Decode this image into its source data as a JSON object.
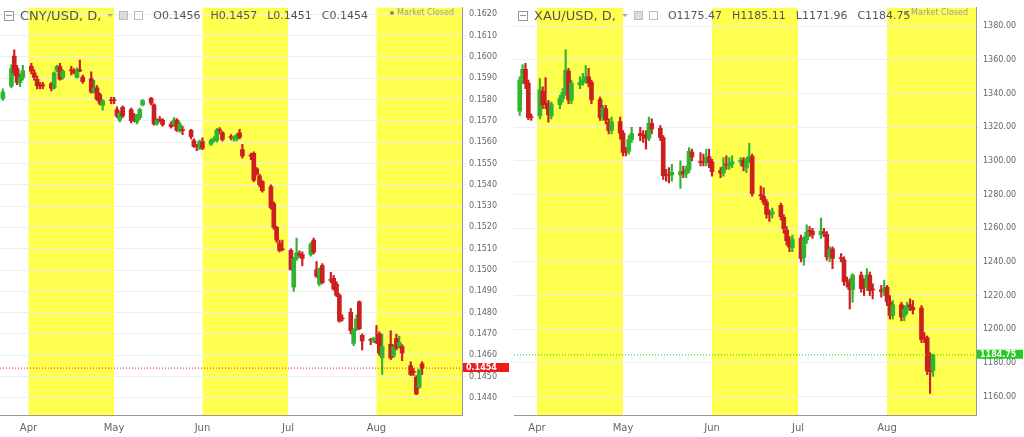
{
  "chart_data": [
    {
      "type": "candlestick",
      "title": "CNY/USD, D,",
      "annotations": [
        "O0.1456",
        "H0.1457",
        "L0.1451",
        "C0.1454",
        "Market Closed"
      ],
      "colors": [
        "#2fb52f",
        "#2fb52f",
        "#cc1f1f",
        "#cc1f1f",
        "#2fb52f",
        "#2fb52f",
        "#cc1f1f",
        "#cc1f1f",
        "#cc1f1f",
        "#cc1f1f",
        "#cc1f1f",
        "#cc1f1f",
        "#2fb52f",
        "#2fb52f",
        "#cc1f1f",
        "#2fb52f",
        "#cc1f1f",
        "#cc1f1f",
        "#2fb52f",
        "#cc1f1f",
        "#cc1f1f",
        "#cc1f1f",
        "#2fb52f",
        "#cc1f1f",
        "#cc1f1f",
        "#2fb52f",
        "#cc1f1f",
        "#cc1f1f",
        "#cc1f1f",
        "#2fb52f",
        "#cc1f1f",
        "#cc1f1f",
        "#cc1f1f",
        "#2fb52f",
        "#2fb52f",
        "#2fb52f",
        "#cc1f1f",
        "#cc1f1f",
        "#2fb52f",
        "#cc1f1f",
        "#cc1f1f",
        "#cc1f1f",
        "#2fb52f",
        "#cc1f1f",
        "#2fb52f",
        "#cc1f1f",
        "#cc1f1f",
        "#cc1f1f",
        "#cc1f1f",
        "#2fb52f",
        "#cc1f1f",
        "#2fb52f",
        "#2fb52f",
        "#2fb52f",
        "#cc1f1f",
        "#cc1f1f",
        "#cc1f1f",
        "#2fb52f",
        "#2fb52f",
        "#cc1f1f",
        "#cc1f1f",
        "#cc1f1f",
        "#cc1f1f",
        "#cc1f1f",
        "#cc1f1f",
        "#cc1f1f",
        "#cc1f1f",
        "#cc1f1f",
        "#cc1f1f",
        "#cc1f1f",
        "#cc1f1f",
        "#cc1f1f",
        "#2fb52f",
        "#2fb52f",
        "#cc1f1f",
        "#cc1f1f",
        "#2fb52f",
        "#cc1f1f",
        "#cc1f1f",
        "#2fb52f",
        "#cc1f1f",
        "#cc1f1f",
        "#cc1f1f",
        "#cc1f1f",
        "#cc1f1f",
        "#cc1f1f",
        "#cc1f1f",
        "#2fb52f",
        "#2fb52f",
        "#cc1f1f",
        "#cc1f1f",
        "#cc1f1f",
        "#2fb52f",
        "#cc1f1f",
        "#cc1f1f",
        "#2fb52f",
        "#cc1f1f",
        "#2fb52f",
        "#cc1f1f",
        "#2fb52f",
        "#cc1f1f",
        "#cc1f1f",
        "#cc1f1f",
        "#cc1f1f",
        "#2fb52f",
        "#cc1f1f"
      ],
      "x": [
        "--03-23",
        "--03-26",
        "--03-27",
        "--03-28",
        "--03-29",
        "--03-30",
        "--04-02",
        "--04-03",
        "--04-04",
        "--04-05",
        "--04-06",
        "--04-09",
        "--04-10",
        "--04-11",
        "--04-12",
        "--04-13",
        "--04-16",
        "--04-17",
        "--04-18",
        "--04-19",
        "--04-20",
        "--04-23",
        "--04-24",
        "--04-25",
        "--04-26",
        "--04-27",
        "--04-30",
        "--05-01",
        "--05-02",
        "--05-03",
        "--05-04",
        "--05-07",
        "--05-08",
        "--05-09",
        "--05-10",
        "--05-11",
        "--05-14",
        "--05-15",
        "--05-16",
        "--05-17",
        "--05-18",
        "--05-21",
        "--05-22",
        "--05-23",
        "--05-24",
        "--05-25",
        "--05-28",
        "--05-29",
        "--05-30",
        "--05-31",
        "--06-01",
        "--06-04",
        "--06-05",
        "--06-06",
        "--06-07",
        "--06-08",
        "--06-11",
        "--06-12",
        "--06-13",
        "--06-14",
        "--06-15",
        "--06-18",
        "--06-19",
        "--06-20",
        "--06-21",
        "--06-22",
        "--06-25",
        "--06-26",
        "--06-27",
        "--06-28",
        "--06-29",
        "--07-02",
        "--07-03",
        "--07-04",
        "--07-05",
        "--07-06",
        "--07-09",
        "--07-10",
        "--07-11",
        "--07-12",
        "--07-13",
        "--07-16",
        "--07-17",
        "--07-18",
        "--07-19",
        "--07-20",
        "--07-23",
        "--07-24",
        "--07-25",
        "--07-26",
        "--07-27",
        "--07-30",
        "--07-31",
        "--08-01",
        "--08-02",
        "--08-03",
        "--08-06",
        "--08-07",
        "--08-08",
        "--08-09",
        "--08-10",
        "--08-13",
        "--08-14",
        "--08-15",
        "--08-16",
        "--08-17"
      ],
      "ohlc": [
        [
          0.15805,
          0.1585,
          0.15795,
          0.15835
        ],
        [
          0.15862,
          0.15963,
          0.15855,
          0.15945
        ],
        [
          0.16003,
          0.16033,
          0.1591,
          0.15925
        ],
        [
          0.15945,
          0.1596,
          0.1587,
          0.1588
        ],
        [
          0.1588,
          0.1592,
          0.1586,
          0.15905
        ],
        [
          0.15903,
          0.1596,
          0.1589,
          0.15935
        ],
        [
          0.15955,
          0.1597,
          0.1592,
          0.15933
        ],
        [
          0.15925,
          0.1594,
          0.1589,
          0.15903
        ],
        [
          0.15895,
          0.1591,
          0.1585,
          0.15865
        ],
        [
          0.15866,
          0.1588,
          0.1585,
          0.15864
        ],
        [
          0.15866,
          0.1588,
          0.1585,
          0.15864
        ],
        [
          0.15873,
          0.1588,
          0.1584,
          0.15853
        ],
        [
          0.15853,
          0.1593,
          0.1585,
          0.15925
        ],
        [
          0.15935,
          0.1596,
          0.1593,
          0.15955
        ],
        [
          0.15955,
          0.1597,
          0.1589,
          0.15895
        ],
        [
          0.15903,
          0.1594,
          0.15895,
          0.15933
        ],
        [
          0.15936,
          0.15955,
          0.15915,
          0.15934
        ],
        [
          0.15935,
          0.15945,
          0.1592,
          0.15925
        ],
        [
          0.15903,
          0.15948,
          0.159,
          0.15933
        ],
        [
          0.15936,
          0.15985,
          0.1593,
          0.15934
        ],
        [
          0.15905,
          0.15915,
          0.15875,
          0.15883
        ],
        [
          0.15898,
          0.1593,
          0.1583,
          0.15835
        ],
        [
          0.15835,
          0.1589,
          0.1583,
          0.15855
        ],
        [
          0.15855,
          0.15865,
          0.15795,
          0.15802
        ],
        [
          0.15823,
          0.1583,
          0.15775,
          0.15783
        ],
        [
          0.15772,
          0.158,
          0.1575,
          0.15795
        ],
        [
          0.15796,
          0.1581,
          0.1578,
          0.15794
        ],
        [
          0.15796,
          0.1581,
          0.1578,
          0.15794
        ],
        [
          0.15753,
          0.15765,
          0.15715,
          0.15723
        ],
        [
          0.15703,
          0.15745,
          0.15695,
          0.15735
        ],
        [
          0.15763,
          0.1577,
          0.15715,
          0.15723
        ],
        [
          0.15753,
          0.1576,
          0.1569,
          0.157
        ],
        [
          0.15727,
          0.15735,
          0.15695,
          0.15703
        ],
        [
          0.15693,
          0.1573,
          0.15685,
          0.15723
        ],
        [
          0.15715,
          0.1576,
          0.15705,
          0.15753
        ],
        [
          0.15775,
          0.158,
          0.1577,
          0.15795
        ],
        [
          0.15805,
          0.1581,
          0.15775,
          0.15783
        ],
        [
          0.15775,
          0.1578,
          0.1568,
          0.15685
        ],
        [
          0.15685,
          0.1571,
          0.1568,
          0.15703
        ],
        [
          0.15704,
          0.1572,
          0.15695,
          0.15702
        ],
        [
          0.15703,
          0.1571,
          0.15675,
          0.15682
        ],
        [
          0.15685,
          0.15695,
          0.15665,
          0.15673
        ],
        [
          0.15682,
          0.15715,
          0.15675,
          0.15703
        ],
        [
          0.15703,
          0.1571,
          0.1565,
          0.15655
        ],
        [
          0.15655,
          0.15695,
          0.15645,
          0.15685
        ],
        [
          0.15656,
          0.15675,
          0.15635,
          0.15654
        ],
        [
          0.15655,
          0.1566,
          0.15615,
          0.15625
        ],
        [
          0.15607,
          0.15615,
          0.15575,
          0.1558
        ],
        [
          0.15581,
          0.1559,
          0.1556,
          0.15579
        ],
        [
          0.15573,
          0.1561,
          0.15565,
          0.15603
        ],
        [
          0.15602,
          0.1562,
          0.15565,
          0.15572
        ],
        [
          0.1559,
          0.15615,
          0.15585,
          0.15607
        ],
        [
          0.15607,
          0.15625,
          0.156,
          0.15617
        ],
        [
          0.15607,
          0.15665,
          0.156,
          0.15655
        ],
        [
          0.15656,
          0.15668,
          0.15638,
          0.15654
        ],
        [
          0.15643,
          0.1565,
          0.15605,
          0.15613
        ],
        [
          0.15623,
          0.15635,
          0.1561,
          0.15621
        ],
        [
          0.15614,
          0.1563,
          0.15605,
          0.15625
        ],
        [
          0.15614,
          0.1564,
          0.15605,
          0.15632
        ],
        [
          0.15643,
          0.1566,
          0.15615,
          0.15622
        ],
        [
          0.15565,
          0.1559,
          0.15525,
          0.15535
        ],
        [
          0.15536,
          0.15548,
          0.15518,
          0.15534
        ],
        [
          0.15547,
          0.15555,
          0.15415,
          0.15422
        ],
        [
          0.15475,
          0.1548,
          0.15445,
          0.15452
        ],
        [
          0.15442,
          0.1545,
          0.1539,
          0.154
        ],
        [
          0.15415,
          0.1542,
          0.15365,
          0.15372
        ],
        [
          0.15392,
          0.154,
          0.15285,
          0.15294
        ],
        [
          0.15312,
          0.1532,
          0.1519,
          0.152
        ],
        [
          0.152,
          0.15205,
          0.1513,
          0.1514
        ],
        [
          0.15126,
          0.1514,
          0.15085,
          0.15092
        ],
        [
          0.15097,
          0.1514,
          0.1509,
          0.15095
        ],
        [
          0.15092,
          0.151,
          0.15,
          0.15002
        ],
        [
          0.1492,
          0.1506,
          0.149,
          0.15054
        ],
        [
          0.15054,
          0.1515,
          0.15045,
          0.15081
        ],
        [
          0.15073,
          0.1509,
          0.1506,
          0.15071
        ],
        [
          0.15072,
          0.15085,
          0.1502,
          0.15054
        ],
        [
          0.15072,
          0.1513,
          0.15065,
          0.15122
        ],
        [
          0.15141,
          0.1515,
          0.15075,
          0.15084
        ],
        [
          0.15002,
          0.1504,
          0.14965,
          0.14971
        ],
        [
          0.14934,
          0.1501,
          0.14925,
          0.15002
        ],
        [
          0.15021,
          0.1503,
          0.14935,
          0.14941
        ],
        [
          0.14953,
          0.1499,
          0.1494,
          0.14951
        ],
        [
          0.14961,
          0.14975,
          0.14905,
          0.14911
        ],
        [
          0.14934,
          0.14945,
          0.14875,
          0.14881
        ],
        [
          0.14881,
          0.1489,
          0.14755,
          0.14761
        ],
        [
          0.14773,
          0.1479,
          0.1476,
          0.14771
        ],
        [
          0.14802,
          0.1482,
          0.147,
          0.14716
        ],
        [
          0.14656,
          0.14725,
          0.14645,
          0.14721
        ],
        [
          0.14722,
          0.1479,
          0.14715,
          0.1477
        ],
        [
          0.14851,
          0.14855,
          0.1472,
          0.14724
        ],
        [
          0.14694,
          0.147,
          0.14625,
          0.14667
        ],
        [
          0.14672,
          0.1468,
          0.1465,
          0.1467
        ],
        [
          0.14667,
          0.14685,
          0.1466,
          0.14679
        ],
        [
          0.14662,
          0.1474,
          0.14655,
          0.1466
        ],
        [
          0.14701,
          0.1471,
          0.146,
          0.14611
        ],
        [
          0.14588,
          0.147,
          0.1451,
          0.14641
        ],
        [
          0.14652,
          0.14715,
          0.1458,
          0.14588
        ],
        [
          0.14596,
          0.1465,
          0.1459,
          0.14641
        ],
        [
          0.14679,
          0.147,
          0.14625,
          0.14634
        ],
        [
          0.14641,
          0.1469,
          0.14635,
          0.14661
        ],
        [
          0.14641,
          0.1465,
          0.14575,
          0.14611
        ],
        [
          0.14551,
          0.1457,
          0.14505,
          0.1451
        ],
        [
          0.14522,
          0.14538,
          0.14505,
          0.1452
        ],
        [
          0.14498,
          0.14505,
          0.14415,
          0.14419
        ],
        [
          0.14449,
          0.14535,
          0.14445,
          0.14531
        ],
        [
          0.1456,
          0.1457,
          0.1451,
          0.1454
        ]
      ],
      "xlim": [
        "--03-22",
        "--08-31"
      ],
      "xticks": [
        {
          "value": "--04-01",
          "label": "Apr"
        },
        {
          "value": "--05-01",
          "label": "May"
        },
        {
          "value": "--06-01",
          "label": "Jun"
        },
        {
          "value": "--07-01",
          "label": "Jul"
        },
        {
          "value": "--08-01",
          "label": "Aug"
        }
      ],
      "ylim": [
        0.1432,
        0.1623
      ],
      "yticks": [
        {
          "value": 0.144,
          "label": "0.1440"
        },
        {
          "value": 0.145,
          "label": "0.1450"
        },
        {
          "value": 0.146,
          "label": "0.1460"
        },
        {
          "value": 0.147,
          "label": "0.1470"
        },
        {
          "value": 0.148,
          "label": "0.1480"
        },
        {
          "value": 0.149,
          "label": "0.1490"
        },
        {
          "value": 0.15,
          "label": "0.1500"
        },
        {
          "value": 0.151,
          "label": "0.1510"
        },
        {
          "value": 0.152,
          "label": "0.1520"
        },
        {
          "value": 0.153,
          "label": "0.1530"
        },
        {
          "value": 0.154,
          "label": "0.1540"
        },
        {
          "value": 0.155,
          "label": "0.1550"
        },
        {
          "value": 0.156,
          "label": "0.1560"
        },
        {
          "value": 0.157,
          "label": "0.1570"
        },
        {
          "value": 0.158,
          "label": "0.1580"
        },
        {
          "value": 0.159,
          "label": "0.1590"
        },
        {
          "value": 0.16,
          "label": "0.1600"
        },
        {
          "value": 0.161,
          "label": "0.1610"
        },
        {
          "value": 0.162,
          "label": "0.1620"
        }
      ],
      "grid": "y",
      "bands": [
        {
          "axis": "x",
          "from": "--04-01",
          "to": "--05-01",
          "color": "#ffff4f"
        },
        {
          "axis": "x",
          "from": "--06-01",
          "to": "--07-01",
          "color": "#ffff4f"
        },
        {
          "axis": "x",
          "from": "--08-01",
          "to": "--08-31",
          "color": "#ffff4f"
        }
      ],
      "ref_lines": [
        {
          "axis": "y",
          "value": 0.1454,
          "label": "0.1454",
          "color": "#ee1c1c",
          "line_style": "dotted"
        }
      ]
    },
    {
      "type": "candlestick",
      "title": "XAU/USD, D,",
      "annotations": [
        "O1175.47",
        "H1185.11",
        "L1171.96",
        "C1184.75",
        "Market Closed"
      ],
      "colors": [
        "#2fb52f",
        "#2fb52f",
        "#cc1f1f",
        "#cc1f1f",
        "#cc1f1f",
        "#2fb52f",
        "#cc1f1f",
        "#cc1f1f",
        "#cc1f1f",
        "#2fb52f",
        "#2fb52f",
        "#2fb52f",
        "#2fb52f",
        "#cc1f1f",
        "#2fb52f",
        "#2fb52f",
        "#2fb52f",
        "#2fb52f",
        "#cc1f1f",
        "#cc1f1f",
        "#cc1f1f",
        "#2fb52f",
        "#cc1f1f",
        "#cc1f1f",
        "#2fb52f",
        "#cc1f1f",
        "#cc1f1f",
        "#cc1f1f",
        "#2fb52f",
        "#2fb52f",
        "#cc1f1f",
        "#cc1f1f",
        "#cc1f1f",
        "#2fb52f",
        "#cc1f1f",
        "#cc1f1f",
        "#cc1f1f",
        "#cc1f1f",
        "#cc1f1f",
        "#2fb52f",
        "#2fb52f",
        "#cc1f1f",
        "#2fb52f",
        "#2fb52f",
        "#cc1f1f",
        "#cc1f1f",
        "#cc1f1f",
        "#2fb52f",
        "#cc1f1f",
        "#cc1f1f",
        "#cc1f1f",
        "#2fb52f",
        "#cc1f1f",
        "#2fb52f",
        "#2fb52f",
        "#2fb52f",
        "#cc1f1f",
        "#2fb52f",
        "#2fb52f",
        "#cc1f1f",
        "#cc1f1f",
        "#cc1f1f",
        "#cc1f1f",
        "#cc1f1f",
        "#2fb52f",
        "#cc1f1f",
        "#cc1f1f",
        "#cc1f1f",
        "#cc1f1f",
        "#2fb52f",
        "#cc1f1f",
        "#2fb52f",
        "#2fb52f",
        "#cc1f1f",
        "#cc1f1f",
        "#2fb52f",
        "#cc1f1f",
        "#cc1f1f",
        "#2fb52f",
        "#cc1f1f",
        "#cc1f1f",
        "#cc1f1f",
        "#cc1f1f",
        "#cc1f1f",
        "#2fb52f",
        "#cc1f1f",
        "#cc1f1f",
        "#2fb52f",
        "#cc1f1f",
        "#cc1f1f",
        "#cc1f1f",
        "#2fb52f",
        "#cc1f1f",
        "#cc1f1f",
        "#2fb52f",
        "#cc1f1f",
        "#2fb52f",
        "#2fb52f",
        "#cc1f1f",
        "#cc1f1f",
        "#cc1f1f",
        "#cc1f1f",
        "#cc1f1f",
        "#cc1f1f",
        "#2fb52f"
      ],
      "x": [
        "--03-26",
        "--03-27",
        "--03-28",
        "--03-29",
        "--03-30",
        "--04-02",
        "--04-03",
        "--04-04",
        "--04-05",
        "--04-06",
        "--04-09",
        "--04-10",
        "--04-11",
        "--04-12",
        "--04-13",
        "--04-16",
        "--04-17",
        "--04-18",
        "--04-19",
        "--04-20",
        "--04-23",
        "--04-24",
        "--04-25",
        "--04-26",
        "--04-27",
        "--04-30",
        "--05-01",
        "--05-02",
        "--05-03",
        "--05-04",
        "--05-07",
        "--05-08",
        "--05-09",
        "--05-10",
        "--05-11",
        "--05-14",
        "--05-15",
        "--05-16",
        "--05-17",
        "--05-18",
        "--05-21",
        "--05-22",
        "--05-23",
        "--05-24",
        "--05-25",
        "--05-28",
        "--05-29",
        "--05-30",
        "--05-31",
        "--06-01",
        "--06-04",
        "--06-05",
        "--06-06",
        "--06-07",
        "--06-08",
        "--06-11",
        "--06-12",
        "--06-13",
        "--06-14",
        "--06-15",
        "--06-18",
        "--06-19",
        "--06-20",
        "--06-21",
        "--06-22",
        "--06-25",
        "--06-26",
        "--06-27",
        "--06-28",
        "--06-29",
        "--07-02",
        "--07-03",
        "--07-04",
        "--07-05",
        "--07-06",
        "--07-09",
        "--07-10",
        "--07-11",
        "--07-12",
        "--07-13",
        "--07-16",
        "--07-17",
        "--07-18",
        "--07-19",
        "--07-20",
        "--07-23",
        "--07-24",
        "--07-25",
        "--07-26",
        "--07-27",
        "--07-30",
        "--07-31",
        "--08-01",
        "--08-02",
        "--08-03",
        "--08-06",
        "--08-07",
        "--08-08",
        "--08-09",
        "--08-10",
        "--08-13",
        "--08-14",
        "--08-15",
        "--08-16",
        "--08-17"
      ],
      "ohlc": [
        [
          1329.5,
          1350,
          1327,
          1348.1
        ],
        [
          1348.7,
          1357.3,
          1346,
          1354.4
        ],
        [
          1354.4,
          1358,
          1343,
          1345.8
        ],
        [
          1346.2,
          1348,
          1324.5,
          1325.7
        ],
        [
          1326.4,
          1328,
          1324,
          1325.8
        ],
        [
          1326.7,
          1349,
          1325,
          1342.4
        ],
        [
          1341.4,
          1344,
          1331,
          1333.4
        ],
        [
          1334.2,
          1349.6,
          1331,
          1333.8
        ],
        [
          1333.8,
          1336,
          1323,
          1327.3
        ],
        [
          1326.7,
          1335,
          1325,
          1333.8
        ],
        [
          1333.4,
          1339,
          1331,
          1337.2
        ],
        [
          1337.2,
          1343,
          1335,
          1340.6
        ],
        [
          1340.6,
          1366.2,
          1339,
          1354
        ],
        [
          1353.4,
          1355,
          1334,
          1336.2
        ],
        [
          1335.9,
          1348,
          1334,
          1346.2
        ],
        [
          1345.2,
          1350,
          1343,
          1346.7
        ],
        [
          1346.7,
          1352,
          1345,
          1348.3
        ],
        [
          1348.3,
          1356.7,
          1346,
          1350
        ],
        [
          1350,
          1355,
          1344,
          1346.4
        ],
        [
          1346.7,
          1348,
          1334,
          1336.2
        ],
        [
          1336.6,
          1338,
          1324,
          1325.7
        ],
        [
          1325.7,
          1333,
          1324,
          1331.5
        ],
        [
          1331.1,
          1333,
          1322,
          1324.2
        ],
        [
          1322.9,
          1325,
          1316,
          1318.1
        ],
        [
          1318.1,
          1326,
          1316,
          1323.4
        ],
        [
          1323.4,
          1326,
          1313,
          1316.5
        ],
        [
          1316.5,
          1318,
          1303,
          1305.1
        ],
        [
          1305.8,
          1308,
          1303,
          1305.2
        ],
        [
          1305.7,
          1315,
          1304,
          1312.7
        ],
        [
          1312.7,
          1320,
          1311,
          1316.2
        ],
        [
          1316.2,
          1320,
          1312,
          1315
        ],
        [
          1315.4,
          1318,
          1311,
          1315
        ],
        [
          1315.2,
          1318,
          1307,
          1313.3
        ],
        [
          1313.3,
          1326,
          1312,
          1322.3
        ],
        [
          1322.3,
          1325,
          1316,
          1319
        ],
        [
          1319.4,
          1321,
          1312,
          1313.9
        ],
        [
          1313.9,
          1315,
          1289,
          1291.3
        ],
        [
          1291.9,
          1295,
          1288,
          1291.5
        ],
        [
          1291.9,
          1296,
          1287,
          1291.5
        ],
        [
          1291.7,
          1298,
          1288,
          1293.2
        ],
        [
          1291.7,
          1300,
          1283.7,
          1293.6
        ],
        [
          1293.6,
          1297,
          1290,
          1292.3
        ],
        [
          1292.3,
          1297,
          1290,
          1294.8
        ],
        [
          1294.8,
          1308,
          1293,
          1305.7
        ],
        [
          1305.3,
          1307,
          1300,
          1302.4
        ],
        [
          1299.5,
          1305,
          1297,
          1299.1
        ],
        [
          1299.5,
          1304,
          1297,
          1299.1
        ],
        [
          1299.3,
          1307,
          1297,
          1302.2
        ],
        [
          1302.4,
          1307,
          1296,
          1299
        ],
        [
          1299.4,
          1301,
          1291,
          1293.6
        ],
        [
          1294.2,
          1296,
          1290,
          1292.7
        ],
        [
          1292.9,
          1302,
          1291,
          1296.5
        ],
        [
          1297.9,
          1303,
          1295,
          1297.5
        ],
        [
          1297.1,
          1302,
          1295,
          1298
        ],
        [
          1298,
          1303,
          1296,
          1299.4
        ],
        [
          1299.4,
          1302,
          1297,
          1300.5
        ],
        [
          1300.5,
          1302,
          1294,
          1296.7
        ],
        [
          1295.8,
          1302,
          1293,
          1300.5
        ],
        [
          1300.5,
          1310.5,
          1299,
          1302.8
        ],
        [
          1302.8,
          1304,
          1279,
          1280.5
        ],
        [
          1279.7,
          1285,
          1277,
          1279.3
        ],
        [
          1278.9,
          1284,
          1274,
          1275.5
        ],
        [
          1275.5,
          1277,
          1266,
          1268.4
        ],
        [
          1268.6,
          1271,
          1264,
          1268.2
        ],
        [
          1268.4,
          1272,
          1266,
          1269.8
        ],
        [
          1273.6,
          1275,
          1265,
          1266.9
        ],
        [
          1266.5,
          1268,
          1257,
          1259.8
        ],
        [
          1258.9,
          1261,
          1250,
          1252.6
        ],
        [
          1252.6,
          1255,
          1246,
          1248.7
        ],
        [
          1248.4,
          1256,
          1246,
          1253.5
        ],
        [
          1254.1,
          1256,
          1240,
          1242.1
        ],
        [
          1242.6,
          1255,
          1238,
          1253.5
        ],
        [
          1253.1,
          1262,
          1251,
          1257.5
        ],
        [
          1258.5,
          1261,
          1255,
          1258.1
        ],
        [
          1258.3,
          1260,
          1254,
          1256
        ],
        [
          1256,
          1266,
          1254,
          1258.3
        ],
        [
          1257.5,
          1260,
          1255,
          1257.1
        ],
        [
          1256.4,
          1258,
          1241,
          1243
        ],
        [
          1243,
          1249,
          1240,
          1247.4
        ],
        [
          1247.8,
          1249,
          1236,
          1242.1
        ],
        [
          1242.3,
          1245,
          1240,
          1241.9
        ],
        [
          1241.3,
          1243,
          1226,
          1228.3
        ],
        [
          1228.5,
          1231,
          1225,
          1228.1
        ],
        [
          1227.7,
          1230,
          1212,
          1223.5
        ],
        [
          1223.5,
          1233,
          1216,
          1232.1
        ],
        [
          1232.1,
          1234,
          1222,
          1224.1
        ],
        [
          1225.6,
          1230,
          1220,
          1225.2
        ],
        [
          1225,
          1236,
          1223,
          1232.1
        ],
        [
          1232.1,
          1234,
          1220,
          1222.9
        ],
        [
          1223.7,
          1227,
          1218,
          1223.3
        ],
        [
          1223.5,
          1226,
          1219,
          1222.2
        ],
        [
          1222.2,
          1229,
          1220,
          1224.1
        ],
        [
          1224.9,
          1226,
          1214,
          1216.5
        ],
        [
          1215.9,
          1220,
          1206,
          1208.2
        ],
        [
          1208.2,
          1217,
          1206,
          1214.5
        ],
        [
          1214.5,
          1216,
          1205,
          1207.3
        ],
        [
          1207.8,
          1214,
          1205,
          1211.9
        ],
        [
          1211.5,
          1216,
          1209,
          1214
        ],
        [
          1214.5,
          1218,
          1211,
          1213
        ],
        [
          1213,
          1217,
          1209,
          1211.5
        ],
        [
          1212.6,
          1214,
          1192,
          1193.9
        ],
        [
          1194.7,
          1198,
          1192,
          1194.3
        ],
        [
          1194.9,
          1196,
          1173,
          1175.2
        ],
        [
          1176.3,
          1186,
          1161.8,
          1174.8
        ],
        [
          1175.47,
          1185.11,
          1171.96,
          1184.75
        ]
      ],
      "xlim": [
        "--03-24",
        "--09-01"
      ],
      "xticks": [
        {
          "value": "--04-01",
          "label": "Apr"
        },
        {
          "value": "--05-01",
          "label": "May"
        },
        {
          "value": "--06-01",
          "label": "Jun"
        },
        {
          "value": "--07-01",
          "label": "Jul"
        },
        {
          "value": "--08-01",
          "label": "Aug"
        }
      ],
      "ylim": [
        1149,
        1391
      ],
      "yticks": [
        {
          "value": 1160,
          "label": "1160.00"
        },
        {
          "value": 1180,
          "label": "1180.00"
        },
        {
          "value": 1200,
          "label": "1200.00"
        },
        {
          "value": 1220,
          "label": "1220.00"
        },
        {
          "value": 1240,
          "label": "1240.00"
        },
        {
          "value": 1260,
          "label": "1260.00"
        },
        {
          "value": 1280,
          "label": "1280.00"
        },
        {
          "value": 1300,
          "label": "1300.00"
        },
        {
          "value": 1320,
          "label": "1320.00"
        },
        {
          "value": 1340,
          "label": "1340.00"
        },
        {
          "value": 1360,
          "label": "1360.00"
        },
        {
          "value": 1380,
          "label": "1380.00"
        }
      ],
      "grid": "y",
      "bands": [
        {
          "axis": "x",
          "from": "--04-01",
          "to": "--05-01",
          "color": "#ffff4f"
        },
        {
          "axis": "x",
          "from": "--06-01",
          "to": "--07-01",
          "color": "#ffff4f"
        },
        {
          "axis": "x",
          "from": "--08-01",
          "to": "--09-01",
          "color": "#ffff4f"
        }
      ],
      "ref_lines": [
        {
          "axis": "y",
          "value": 1184.75,
          "label": "1184.75",
          "color": "#22cc22",
          "line_style": "dotted"
        }
      ]
    }
  ]
}
